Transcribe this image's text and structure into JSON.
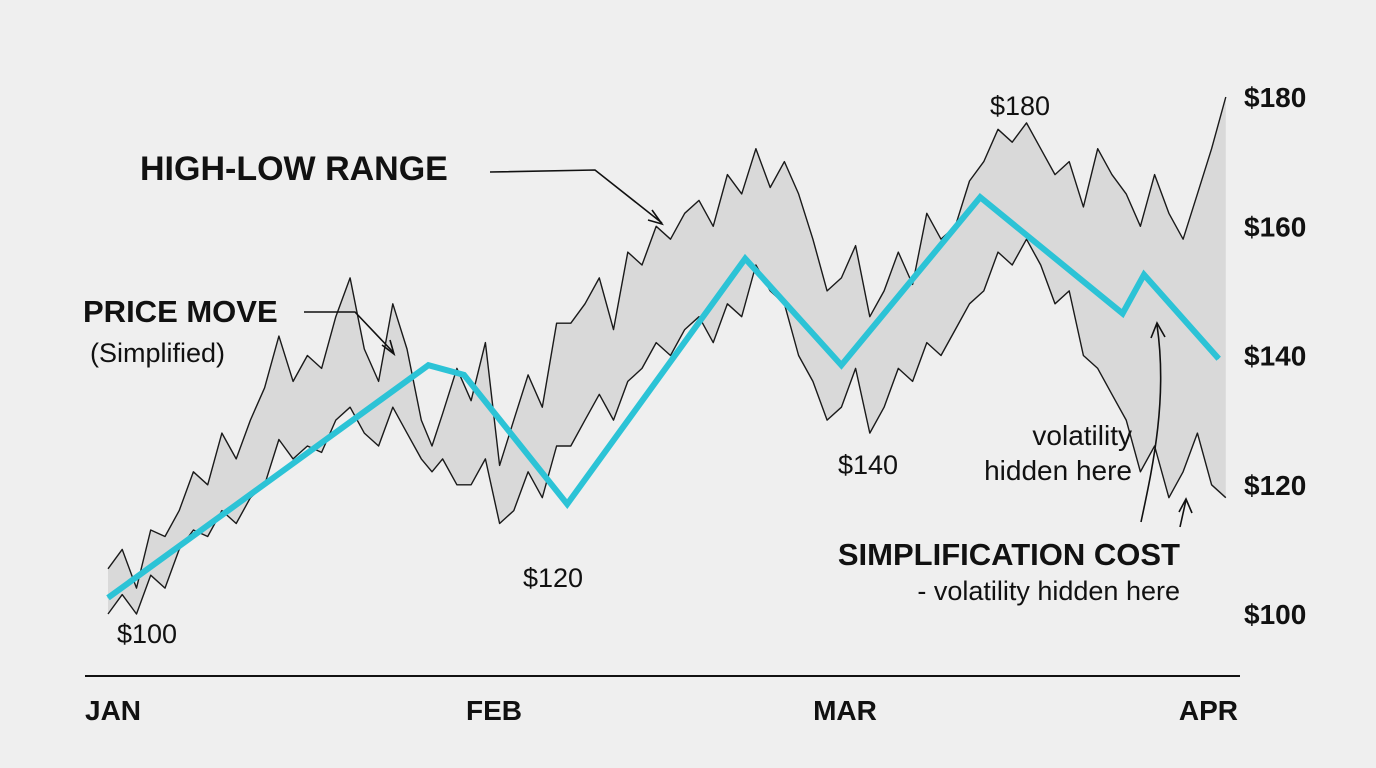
{
  "chart_data": {
    "type": "line",
    "x_ticks": [
      "JAN",
      "FEB",
      "MAR",
      "APR"
    ],
    "y_ticks": [
      "$100",
      "$120",
      "$140",
      "$160",
      "$180"
    ],
    "ylim": [
      100,
      180
    ],
    "grid": false,
    "series": [
      {
        "name": "PRICE MOVE",
        "color": "#2cc3d6",
        "points": [
          {
            "x": 0.0,
            "y": 102.5
          },
          {
            "x": 0.9,
            "y": 138.5
          },
          {
            "x": 1.0,
            "y": 137.0
          },
          {
            "x": 1.29,
            "y": 117.0
          },
          {
            "x": 1.79,
            "y": 155.0
          },
          {
            "x": 2.06,
            "y": 138.5
          },
          {
            "x": 2.45,
            "y": 164.5
          },
          {
            "x": 2.85,
            "y": 146.5
          },
          {
            "x": 2.91,
            "y": 152.5
          },
          {
            "x": 3.12,
            "y": 139.5
          }
        ]
      }
    ],
    "range_band": {
      "name": "HIGH-LOW RANGE",
      "fill": "#d9d9d9",
      "x": [
        0.0,
        0.04,
        0.08,
        0.12,
        0.16,
        0.2,
        0.24,
        0.28,
        0.32,
        0.36,
        0.4,
        0.44,
        0.48,
        0.52,
        0.56,
        0.6,
        0.64,
        0.68,
        0.72,
        0.76,
        0.8,
        0.84,
        0.88,
        0.91,
        0.94,
        0.98,
        1.02,
        1.06,
        1.1,
        1.14,
        1.18,
        1.22,
        1.26,
        1.3,
        1.34,
        1.38,
        1.42,
        1.46,
        1.5,
        1.54,
        1.58,
        1.62,
        1.66,
        1.7,
        1.74,
        1.78,
        1.82,
        1.86,
        1.9,
        1.94,
        1.98,
        2.02,
        2.06,
        2.1,
        2.14,
        2.18,
        2.22,
        2.26,
        2.3,
        2.34,
        2.38,
        2.42,
        2.46,
        2.5,
        2.54,
        2.58,
        2.62,
        2.66,
        2.7,
        2.74,
        2.78,
        2.82,
        2.86,
        2.9,
        2.94,
        2.98,
        3.02,
        3.06,
        3.1,
        3.14
      ],
      "high": [
        107,
        110,
        104,
        113,
        112,
        116,
        122,
        120,
        128,
        124,
        130,
        135,
        143,
        136,
        140,
        138,
        146,
        152,
        141,
        136,
        148,
        141,
        130,
        126,
        131,
        138,
        133,
        142,
        123,
        130,
        137,
        132,
        145,
        145,
        148,
        152,
        144,
        156,
        154,
        160,
        158,
        162,
        164,
        160,
        168,
        165,
        172,
        166,
        170,
        165,
        158,
        150,
        152,
        157,
        146,
        150,
        156,
        151,
        162,
        158,
        160,
        167,
        170,
        175,
        173,
        176,
        172,
        168,
        170,
        163,
        172,
        168,
        165,
        160,
        168,
        162,
        158,
        165,
        172,
        180
      ],
      "low": [
        100,
        103,
        100,
        106,
        104,
        110,
        113,
        112,
        116,
        114,
        118,
        120,
        127,
        124,
        126,
        125,
        130,
        132,
        128,
        126,
        132,
        128,
        124,
        122,
        124,
        120,
        120,
        124,
        114,
        116,
        122,
        118,
        126,
        126,
        130,
        134,
        130,
        136,
        138,
        142,
        140,
        144,
        146,
        142,
        148,
        146,
        154,
        150,
        148,
        140,
        136,
        130,
        132,
        138,
        128,
        132,
        138,
        136,
        142,
        140,
        144,
        148,
        150,
        156,
        154,
        158,
        154,
        148,
        150,
        140,
        138,
        134,
        130,
        122,
        126,
        118,
        122,
        128,
        120,
        118
      ]
    },
    "annotations": [
      {
        "text": "HIGH-LOW RANGE",
        "arrow": true
      },
      {
        "text": "PRICE MOVE",
        "subtext": "(Simplified)",
        "arrow": true
      },
      {
        "text": "$180"
      },
      {
        "text": "$100"
      },
      {
        "text": "$120"
      },
      {
        "text": "$140"
      },
      {
        "text": "volatility",
        "subtext": "hidden here"
      },
      {
        "text": "SIMPLIFICATION COST",
        "subtext": "- volatility hidden here",
        "arrow": true
      }
    ]
  }
}
